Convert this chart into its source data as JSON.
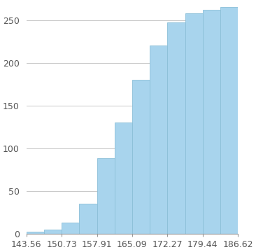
{
  "bin_edges": [
    143.56,
    147.15,
    150.73,
    154.32,
    157.91,
    161.5,
    165.09,
    168.68,
    172.27,
    175.86,
    179.44,
    183.03,
    186.62
  ],
  "cum_heights": [
    2,
    5,
    13,
    35,
    88,
    130,
    180,
    220,
    247,
    258,
    262,
    265
  ],
  "bar_color": "#a8d4ed",
  "bar_edge_color": "#8bbfd8",
  "background_color": "#ffffff",
  "yticks": [
    0,
    50,
    100,
    150,
    200,
    250
  ],
  "xticks": [
    143.56,
    150.73,
    157.91,
    165.09,
    172.27,
    179.44,
    186.62
  ],
  "xlim": [
    143.56,
    186.62
  ],
  "ylim": [
    0,
    270
  ],
  "grid_color": "#c8c8c8",
  "tick_label_fontsize": 9,
  "tick_label_color": "#555555"
}
